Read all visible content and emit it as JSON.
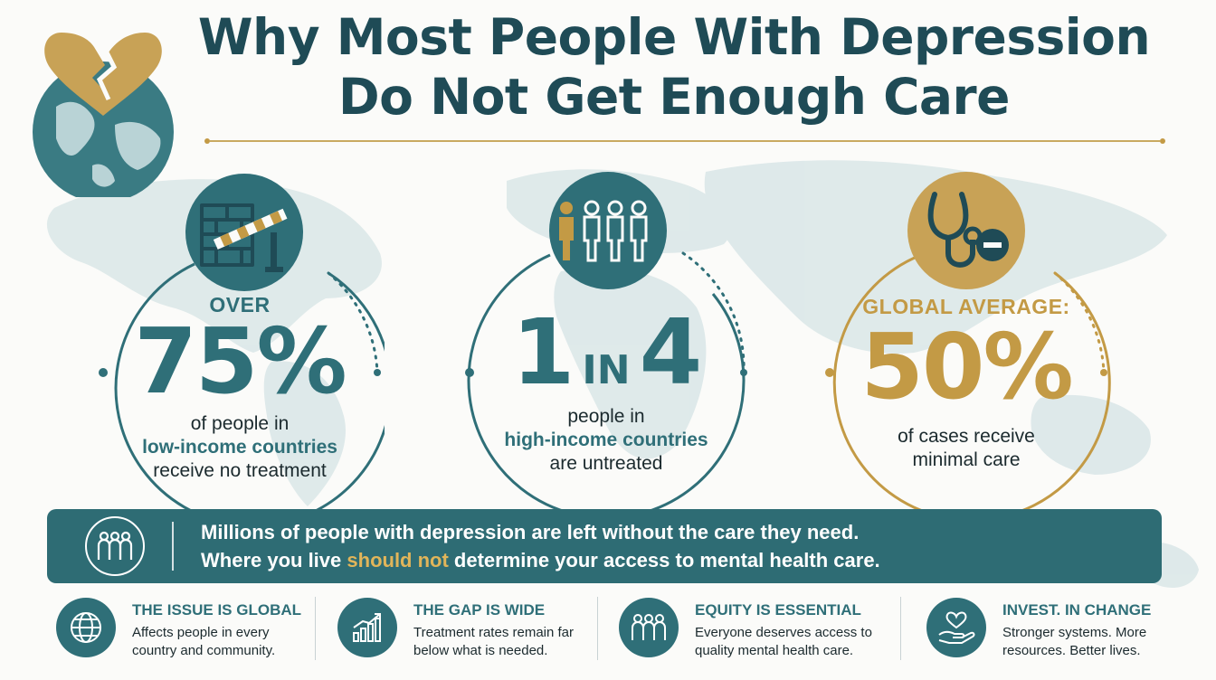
{
  "title": {
    "line1": "Why Most People With Depression",
    "line2": "Do Not Get Enough Care"
  },
  "colors": {
    "teal": "#2f6f78",
    "dark_teal": "#1f4b56",
    "gold": "#c39a45",
    "banner": "#2e6c74",
    "highlight": "#e1b55a"
  },
  "stats": [
    {
      "icon": "barrier-wall-icon",
      "kicker": "OVER",
      "value": "75%",
      "desc_line1": "of people in",
      "desc_highlight": "low-income countries",
      "desc_line3": "receive no treatment"
    },
    {
      "icon": "people-group-icon",
      "value_a": "1",
      "value_in": "IN",
      "value_b": "4",
      "desc_line1": "people in",
      "desc_highlight": "high-income countries",
      "desc_line3": "are untreated"
    },
    {
      "icon": "stethoscope-minus-icon",
      "kicker": "GLOBAL AVERAGE:",
      "value": "50%",
      "desc_line1": "of cases receive",
      "desc_line2": "minimal care"
    }
  ],
  "banner": {
    "icon": "people-circle-icon",
    "line1": "Millions of people with depression are left without the care they need.",
    "line2_pre": "Where you live ",
    "line2_highlight": "should not",
    "line2_post": " determine your access to mental health care."
  },
  "pillars": [
    {
      "icon": "globe-icon",
      "title": "THE ISSUE IS GLOBAL",
      "desc": "Affects people in every country and community."
    },
    {
      "icon": "rising-chart-icon",
      "title": "THE GAP IS WIDE",
      "desc": "Treatment rates remain far below what is needed."
    },
    {
      "icon": "people-icon",
      "title": "EQUITY IS ESSENTIAL",
      "desc": "Everyone deserves access to quality mental health care."
    },
    {
      "icon": "heart-hand-icon",
      "title": "INVEST. IN CHANGE",
      "desc": "Stronger systems. More resources. Better lives."
    }
  ]
}
